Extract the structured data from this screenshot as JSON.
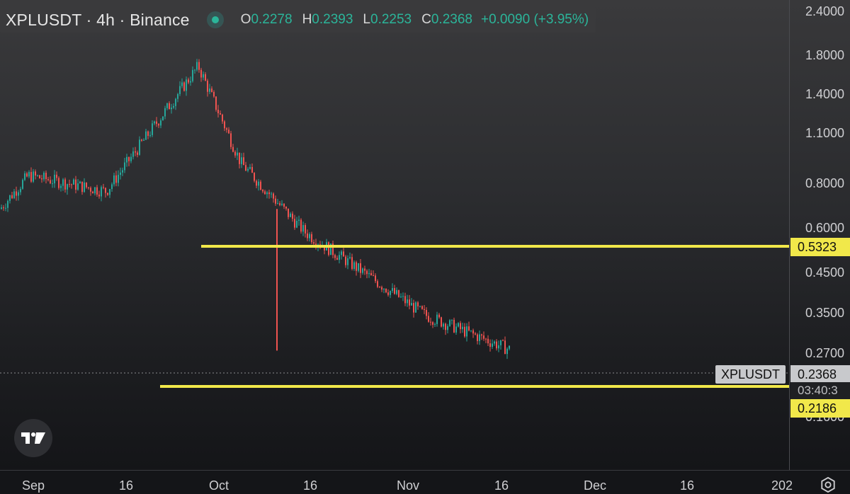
{
  "legend": {
    "title": "XPLUSDT · 4h · Binance",
    "open_key": "O",
    "open": "0.2278",
    "high_key": "H",
    "high": "0.2393",
    "low_key": "L",
    "low": "0.2253",
    "close_key": "C",
    "close": "0.2368",
    "change": "+0.0090 (+3.95%)"
  },
  "price_axis": [
    "2.4000",
    "1.8000",
    "1.4000",
    "1.1000",
    "0.8000",
    "0.6000",
    "0.4500",
    "0.3500",
    "0.2700",
    "0.1600"
  ],
  "levels": {
    "resistance": "0.5323",
    "support": "0.2186",
    "last_price": "0.2368",
    "countdown": "03:40:3"
  },
  "symbol_tag": "XPLUSDT",
  "time_axis": [
    "Sep",
    "16",
    "Oct",
    "16",
    "Nov",
    "16",
    "Dec",
    "16",
    "202"
  ],
  "colors": {
    "up": "#26a69a",
    "down": "#ef5350",
    "level_line": "#f1e84a"
  },
  "icons": {
    "logo": "tradingview-logo-icon",
    "settings": "gear-icon"
  },
  "chart_data": {
    "type": "candlestick",
    "title": "XPLUSDT · 4h · Binance",
    "scale": "log",
    "ylim": [
      0.15,
      2.4
    ],
    "xlim": [
      "Sep",
      "202"
    ],
    "key_points": [
      {
        "x": "Sep",
        "y": 0.62
      },
      {
        "x": "Sep",
        "y": 0.78
      },
      {
        "x": "16",
        "y": 0.7
      },
      {
        "x": "Oct",
        "y": 1.65
      },
      {
        "x": "Oct",
        "y": 0.85
      },
      {
        "x": "16",
        "y": 0.53
      },
      {
        "x": "Nov",
        "y": 0.3
      },
      {
        "x": "16",
        "y": 0.2368
      }
    ],
    "horizontal_lines": [
      0.5323,
      0.2186
    ]
  }
}
